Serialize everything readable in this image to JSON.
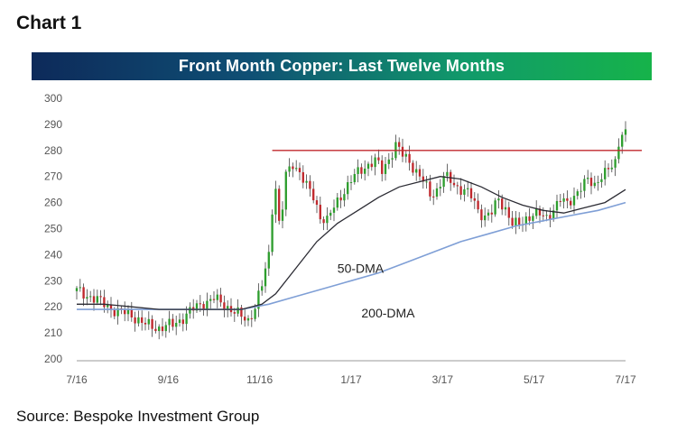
{
  "header": {
    "chart_label": "Chart 1"
  },
  "footer": {
    "source": "Source: Bespoke Investment Group"
  },
  "colors": {
    "up_candle": "#2e9e2e",
    "down_candle": "#c0282d",
    "wick": "#444444",
    "ma50": "#2b2b33",
    "ma200": "#7f9fd6",
    "resistance": "#c0282d"
  },
  "chart_data": {
    "type": "candlestick",
    "title": "Front Month Copper: Last Twelve Months",
    "xlabel": "",
    "ylabel": "",
    "ylim": [
      200,
      300
    ],
    "yticks": [
      200,
      210,
      220,
      230,
      240,
      250,
      260,
      270,
      280,
      290,
      300
    ],
    "xticks": [
      "7/16",
      "9/16",
      "11/16",
      "1/17",
      "3/17",
      "5/17",
      "7/17"
    ],
    "grid": false,
    "resistance_level": 280,
    "close_path": [
      [
        0,
        226
      ],
      [
        4,
        224
      ],
      [
        8,
        221
      ],
      [
        12,
        218
      ],
      [
        16,
        217
      ],
      [
        20,
        213
      ],
      [
        24,
        212
      ],
      [
        28,
        213
      ],
      [
        32,
        217
      ],
      [
        36,
        221
      ],
      [
        40,
        223
      ],
      [
        44,
        220
      ],
      [
        48,
        216
      ],
      [
        50,
        215
      ],
      [
        52,
        220
      ],
      [
        54,
        228
      ],
      [
        56,
        240
      ],
      [
        57,
        258
      ],
      [
        58,
        266
      ],
      [
        59,
        252
      ],
      [
        60,
        258
      ],
      [
        61,
        270
      ],
      [
        63,
        275
      ],
      [
        65,
        272
      ],
      [
        67,
        266
      ],
      [
        69,
        262
      ],
      [
        71,
        255
      ],
      [
        73,
        253
      ],
      [
        75,
        258
      ],
      [
        78,
        265
      ],
      [
        81,
        270
      ],
      [
        84,
        274
      ],
      [
        87,
        276
      ],
      [
        89,
        272
      ],
      [
        91,
        277
      ],
      [
        93,
        282
      ],
      [
        95,
        278
      ],
      [
        97,
        276
      ],
      [
        99,
        272
      ],
      [
        101,
        268
      ],
      [
        103,
        263
      ],
      [
        105,
        265
      ],
      [
        107,
        270
      ],
      [
        109,
        268
      ],
      [
        111,
        266
      ],
      [
        113,
        265
      ],
      [
        115,
        262
      ],
      [
        117,
        257
      ],
      [
        119,
        255
      ],
      [
        121,
        256
      ],
      [
        123,
        261
      ],
      [
        125,
        258
      ],
      [
        127,
        252
      ],
      [
        129,
        251
      ],
      [
        131,
        254
      ],
      [
        133,
        256
      ],
      [
        135,
        255
      ],
      [
        137,
        254
      ],
      [
        139,
        258
      ],
      [
        141,
        261
      ],
      [
        143,
        259
      ],
      [
        145,
        263
      ],
      [
        147,
        266
      ],
      [
        149,
        268
      ],
      [
        151,
        267
      ],
      [
        153,
        271
      ],
      [
        155,
        272
      ],
      [
        157,
        275
      ],
      [
        158,
        283
      ],
      [
        159,
        288
      ],
      [
        160,
        287
      ]
    ],
    "ma50_path": [
      [
        0,
        221
      ],
      [
        8,
        221
      ],
      [
        16,
        220
      ],
      [
        24,
        219
      ],
      [
        32,
        219
      ],
      [
        40,
        219
      ],
      [
        48,
        219
      ],
      [
        54,
        221
      ],
      [
        58,
        225
      ],
      [
        64,
        235
      ],
      [
        70,
        245
      ],
      [
        76,
        252
      ],
      [
        82,
        257
      ],
      [
        88,
        262
      ],
      [
        94,
        266
      ],
      [
        100,
        268
      ],
      [
        106,
        270
      ],
      [
        112,
        269
      ],
      [
        118,
        266
      ],
      [
        124,
        262
      ],
      [
        130,
        259
      ],
      [
        136,
        257
      ],
      [
        142,
        256
      ],
      [
        148,
        258
      ],
      [
        154,
        260
      ],
      [
        160,
        265
      ]
    ],
    "ma200_path": [
      [
        0,
        219
      ],
      [
        16,
        219
      ],
      [
        32,
        219
      ],
      [
        48,
        219
      ],
      [
        56,
        221
      ],
      [
        64,
        224
      ],
      [
        72,
        227
      ],
      [
        80,
        230
      ],
      [
        88,
        233
      ],
      [
        96,
        237
      ],
      [
        104,
        241
      ],
      [
        112,
        245
      ],
      [
        120,
        248
      ],
      [
        128,
        251
      ],
      [
        136,
        253
      ],
      [
        144,
        255
      ],
      [
        152,
        257
      ],
      [
        160,
        260
      ]
    ],
    "annotations": [
      {
        "text": "50-DMA",
        "x": 76,
        "y": 233
      },
      {
        "text": "200-DMA",
        "x": 83,
        "y": 216
      }
    ]
  }
}
